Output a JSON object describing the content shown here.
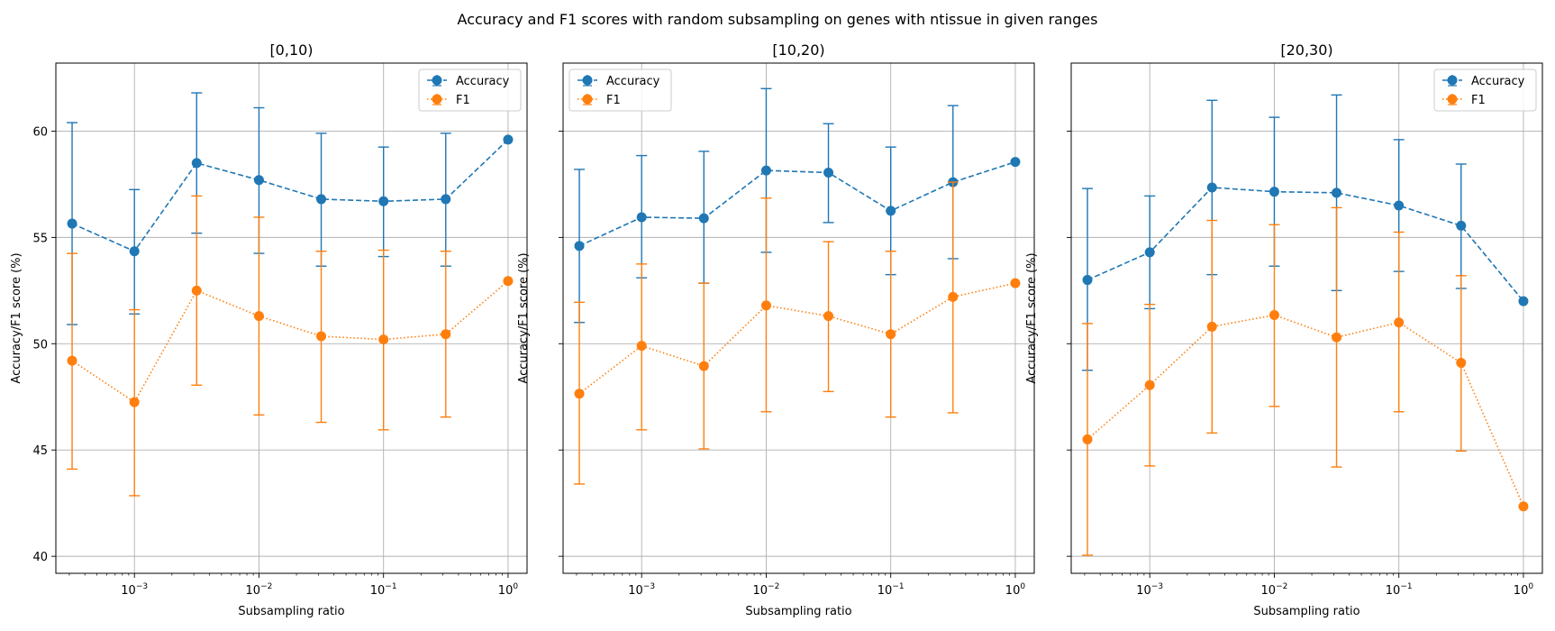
{
  "figure": {
    "title": "Accuracy and F1 scores with random subsampling on genes with ntissue in given ranges"
  },
  "colors": {
    "accuracy": "#1f77b4",
    "f1": "#ff7f0e",
    "grid": "#b0b0b0"
  },
  "chart_data": [
    {
      "type": "line",
      "title": "[0,10)",
      "xlabel": "Subsampling ratio",
      "ylabel": "Accuracy/F1 score (%)",
      "xscale": "log",
      "xlim": [
        0.000234,
        1.42
      ],
      "ylim": [
        39.2,
        63.2
      ],
      "xticks": [
        0.001,
        0.01,
        0.1,
        1
      ],
      "xtick_labels": [
        [
          "10",
          "−3"
        ],
        [
          "10",
          "−2"
        ],
        [
          "10",
          "−1"
        ],
        [
          "10",
          "0"
        ]
      ],
      "yticks": [
        40,
        45,
        50,
        55,
        60
      ],
      "ytick_labels": [
        "40",
        "45",
        "50",
        "55",
        "60"
      ],
      "grid": true,
      "legend": "top-right",
      "x": [
        0.000316,
        0.001,
        0.00316,
        0.01,
        0.0316,
        0.1,
        0.316,
        1
      ],
      "series": [
        {
          "name": "Accuracy",
          "style": "dashed",
          "values": [
            55.65,
            54.35,
            58.5,
            57.7,
            56.8,
            56.7,
            56.8,
            59.6
          ],
          "err_low": [
            50.9,
            51.4,
            55.2,
            54.25,
            53.65,
            54.1,
            53.65,
            null
          ],
          "err_high": [
            60.4,
            57.25,
            61.8,
            61.1,
            59.9,
            59.25,
            59.9,
            null
          ]
        },
        {
          "name": "F1",
          "style": "dotted",
          "values": [
            49.2,
            47.25,
            52.5,
            51.3,
            50.35,
            50.2,
            50.45,
            52.95
          ],
          "err_low": [
            44.1,
            42.85,
            48.05,
            46.65,
            46.3,
            45.95,
            46.55,
            null
          ],
          "err_high": [
            54.25,
            51.6,
            56.95,
            55.95,
            54.35,
            54.4,
            54.35,
            null
          ]
        }
      ]
    },
    {
      "type": "line",
      "title": "[10,20)",
      "xlabel": "Subsampling ratio",
      "ylabel": "Accuracy/F1 score (%)",
      "xscale": "log",
      "xlim": [
        0.000234,
        1.42
      ],
      "ylim": [
        39.2,
        63.2
      ],
      "xticks": [
        0.001,
        0.01,
        0.1,
        1
      ],
      "xtick_labels": [
        [
          "10",
          "−3"
        ],
        [
          "10",
          "−2"
        ],
        [
          "10",
          "−1"
        ],
        [
          "10",
          "0"
        ]
      ],
      "yticks": [
        40,
        45,
        50,
        55,
        60
      ],
      "ytick_labels": [
        "",
        "",
        "",
        "",
        ""
      ],
      "grid": true,
      "legend": "top-left",
      "x": [
        0.000316,
        0.001,
        0.00316,
        0.01,
        0.0316,
        0.1,
        0.316,
        1
      ],
      "series": [
        {
          "name": "Accuracy",
          "style": "dashed",
          "values": [
            54.6,
            55.95,
            55.9,
            58.15,
            58.05,
            56.25,
            57.6,
            58.55
          ],
          "err_low": [
            51.0,
            53.1,
            52.85,
            54.3,
            55.7,
            53.25,
            54.0,
            null
          ],
          "err_high": [
            58.2,
            58.85,
            59.05,
            62.0,
            60.35,
            59.25,
            61.2,
            null
          ]
        },
        {
          "name": "F1",
          "style": "dotted",
          "values": [
            47.65,
            49.9,
            48.95,
            51.8,
            51.3,
            50.45,
            52.2,
            52.85
          ],
          "err_low": [
            43.4,
            45.95,
            45.05,
            46.8,
            47.75,
            46.55,
            46.75,
            null
          ],
          "err_high": [
            51.95,
            53.75,
            52.85,
            56.85,
            54.8,
            54.35,
            57.6,
            null
          ]
        }
      ]
    },
    {
      "type": "line",
      "title": "[20,30)",
      "xlabel": "Subsampling ratio",
      "ylabel": "Accuracy/F1 score (%)",
      "xscale": "log",
      "xlim": [
        0.000234,
        1.42
      ],
      "ylim": [
        39.2,
        63.2
      ],
      "xticks": [
        0.001,
        0.01,
        0.1,
        1
      ],
      "xtick_labels": [
        [
          "10",
          "−3"
        ],
        [
          "10",
          "−2"
        ],
        [
          "10",
          "−1"
        ],
        [
          "10",
          "0"
        ]
      ],
      "yticks": [
        40,
        45,
        50,
        55,
        60
      ],
      "ytick_labels": [
        "",
        "",
        "",
        "",
        ""
      ],
      "grid": true,
      "legend": "top-right",
      "x": [
        0.000316,
        0.001,
        0.00316,
        0.01,
        0.0316,
        0.1,
        0.316,
        1
      ],
      "series": [
        {
          "name": "Accuracy",
          "style": "dashed",
          "values": [
            53.0,
            54.3,
            57.35,
            57.15,
            57.1,
            56.5,
            55.55,
            52.0
          ],
          "err_low": [
            48.75,
            51.65,
            53.25,
            53.65,
            52.5,
            53.4,
            52.6,
            null
          ],
          "err_high": [
            57.3,
            56.95,
            61.45,
            60.65,
            61.7,
            59.6,
            58.45,
            null
          ]
        },
        {
          "name": "F1",
          "style": "dotted",
          "values": [
            45.5,
            48.05,
            50.8,
            51.35,
            50.3,
            51.0,
            49.1,
            42.35
          ],
          "err_low": [
            40.05,
            44.25,
            45.8,
            47.05,
            44.2,
            46.8,
            44.95,
            null
          ],
          "err_high": [
            50.95,
            51.85,
            55.8,
            55.6,
            56.4,
            55.25,
            53.2,
            null
          ]
        }
      ]
    }
  ]
}
